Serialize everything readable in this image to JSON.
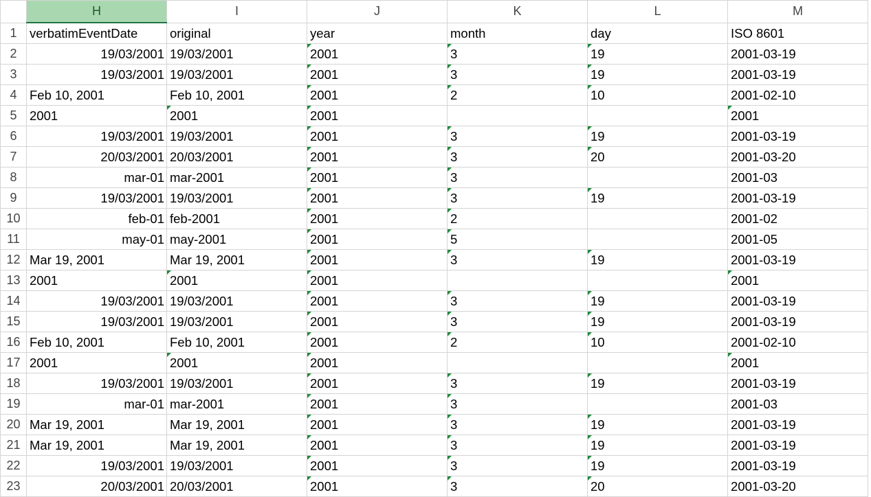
{
  "columns": [
    "H",
    "I",
    "J",
    "K",
    "L",
    "M"
  ],
  "selected_column": "H",
  "rows": [
    {
      "n": "1",
      "cells": [
        {
          "v": "verbatimEventDate",
          "a": "l"
        },
        {
          "v": "original",
          "a": "l"
        },
        {
          "v": "year",
          "a": "l"
        },
        {
          "v": "month",
          "a": "l"
        },
        {
          "v": "day",
          "a": "l"
        },
        {
          "v": "ISO 8601",
          "a": "l"
        }
      ]
    },
    {
      "n": "2",
      "cells": [
        {
          "v": "19/03/2001",
          "a": "r"
        },
        {
          "v": "19/03/2001",
          "a": "l"
        },
        {
          "v": "2001",
          "a": "l",
          "m": true
        },
        {
          "v": "3",
          "a": "l",
          "m": true
        },
        {
          "v": "19",
          "a": "l",
          "m": true
        },
        {
          "v": "2001-03-19",
          "a": "l"
        }
      ]
    },
    {
      "n": "3",
      "cells": [
        {
          "v": "19/03/2001",
          "a": "r"
        },
        {
          "v": "19/03/2001",
          "a": "l"
        },
        {
          "v": "2001",
          "a": "l",
          "m": true
        },
        {
          "v": "3",
          "a": "l",
          "m": true
        },
        {
          "v": "19",
          "a": "l",
          "m": true
        },
        {
          "v": "2001-03-19",
          "a": "l"
        }
      ]
    },
    {
      "n": "4",
      "cells": [
        {
          "v": "Feb 10, 2001",
          "a": "l"
        },
        {
          "v": "Feb 10, 2001",
          "a": "l"
        },
        {
          "v": "2001",
          "a": "l",
          "m": true
        },
        {
          "v": "2",
          "a": "l",
          "m": true
        },
        {
          "v": "10",
          "a": "l",
          "m": true
        },
        {
          "v": "2001-02-10",
          "a": "l"
        }
      ]
    },
    {
      "n": "5",
      "cells": [
        {
          "v": "2001",
          "a": "l"
        },
        {
          "v": "2001",
          "a": "l",
          "m": true
        },
        {
          "v": "2001",
          "a": "l",
          "m": true
        },
        {
          "v": "",
          "a": "l"
        },
        {
          "v": "",
          "a": "l"
        },
        {
          "v": "2001",
          "a": "l",
          "m": true
        }
      ]
    },
    {
      "n": "6",
      "cells": [
        {
          "v": "19/03/2001",
          "a": "r"
        },
        {
          "v": "19/03/2001",
          "a": "l"
        },
        {
          "v": "2001",
          "a": "l",
          "m": true
        },
        {
          "v": "3",
          "a": "l",
          "m": true
        },
        {
          "v": "19",
          "a": "l",
          "m": true
        },
        {
          "v": "2001-03-19",
          "a": "l"
        }
      ]
    },
    {
      "n": "7",
      "cells": [
        {
          "v": "20/03/2001",
          "a": "r"
        },
        {
          "v": "20/03/2001",
          "a": "l"
        },
        {
          "v": "2001",
          "a": "l",
          "m": true
        },
        {
          "v": "3",
          "a": "l",
          "m": true
        },
        {
          "v": "20",
          "a": "l",
          "m": true
        },
        {
          "v": "2001-03-20",
          "a": "l"
        }
      ]
    },
    {
      "n": "8",
      "cells": [
        {
          "v": "mar-01",
          "a": "r"
        },
        {
          "v": "mar-2001",
          "a": "l"
        },
        {
          "v": "2001",
          "a": "l",
          "m": true
        },
        {
          "v": "3",
          "a": "l",
          "m": true
        },
        {
          "v": "",
          "a": "l"
        },
        {
          "v": "2001-03",
          "a": "l"
        }
      ]
    },
    {
      "n": "9",
      "cells": [
        {
          "v": "19/03/2001",
          "a": "r"
        },
        {
          "v": "19/03/2001",
          "a": "l"
        },
        {
          "v": "2001",
          "a": "l",
          "m": true
        },
        {
          "v": "3",
          "a": "l",
          "m": true
        },
        {
          "v": "19",
          "a": "l",
          "m": true
        },
        {
          "v": "2001-03-19",
          "a": "l"
        }
      ]
    },
    {
      "n": "10",
      "cells": [
        {
          "v": "feb-01",
          "a": "r"
        },
        {
          "v": "feb-2001",
          "a": "l"
        },
        {
          "v": "2001",
          "a": "l",
          "m": true
        },
        {
          "v": "2",
          "a": "l",
          "m": true
        },
        {
          "v": "",
          "a": "l"
        },
        {
          "v": "2001-02",
          "a": "l"
        }
      ]
    },
    {
      "n": "11",
      "cells": [
        {
          "v": "may-01",
          "a": "r"
        },
        {
          "v": "may-2001",
          "a": "l"
        },
        {
          "v": "2001",
          "a": "l",
          "m": true
        },
        {
          "v": "5",
          "a": "l",
          "m": true
        },
        {
          "v": "",
          "a": "l"
        },
        {
          "v": "2001-05",
          "a": "l"
        }
      ]
    },
    {
      "n": "12",
      "cells": [
        {
          "v": "Mar 19, 2001",
          "a": "l"
        },
        {
          "v": "Mar 19, 2001",
          "a": "l"
        },
        {
          "v": "2001",
          "a": "l",
          "m": true
        },
        {
          "v": "3",
          "a": "l",
          "m": true
        },
        {
          "v": "19",
          "a": "l",
          "m": true
        },
        {
          "v": "2001-03-19",
          "a": "l"
        }
      ]
    },
    {
      "n": "13",
      "cells": [
        {
          "v": "2001",
          "a": "l"
        },
        {
          "v": "2001",
          "a": "l",
          "m": true
        },
        {
          "v": "2001",
          "a": "l",
          "m": true
        },
        {
          "v": "",
          "a": "l"
        },
        {
          "v": "",
          "a": "l"
        },
        {
          "v": "2001",
          "a": "l",
          "m": true
        }
      ]
    },
    {
      "n": "14",
      "cells": [
        {
          "v": "19/03/2001",
          "a": "r"
        },
        {
          "v": "19/03/2001",
          "a": "l"
        },
        {
          "v": "2001",
          "a": "l",
          "m": true
        },
        {
          "v": "3",
          "a": "l",
          "m": true
        },
        {
          "v": "19",
          "a": "l",
          "m": true
        },
        {
          "v": "2001-03-19",
          "a": "l"
        }
      ]
    },
    {
      "n": "15",
      "cells": [
        {
          "v": "19/03/2001",
          "a": "r"
        },
        {
          "v": "19/03/2001",
          "a": "l"
        },
        {
          "v": "2001",
          "a": "l",
          "m": true
        },
        {
          "v": "3",
          "a": "l",
          "m": true
        },
        {
          "v": "19",
          "a": "l",
          "m": true
        },
        {
          "v": "2001-03-19",
          "a": "l"
        }
      ]
    },
    {
      "n": "16",
      "cells": [
        {
          "v": "Feb 10, 2001",
          "a": "l"
        },
        {
          "v": "Feb 10, 2001",
          "a": "l"
        },
        {
          "v": "2001",
          "a": "l",
          "m": true
        },
        {
          "v": "2",
          "a": "l",
          "m": true
        },
        {
          "v": "10",
          "a": "l",
          "m": true
        },
        {
          "v": "2001-02-10",
          "a": "l"
        }
      ]
    },
    {
      "n": "17",
      "cells": [
        {
          "v": "2001",
          "a": "l"
        },
        {
          "v": "2001",
          "a": "l",
          "m": true
        },
        {
          "v": "2001",
          "a": "l",
          "m": true
        },
        {
          "v": "",
          "a": "l"
        },
        {
          "v": "",
          "a": "l"
        },
        {
          "v": "2001",
          "a": "l",
          "m": true
        }
      ]
    },
    {
      "n": "18",
      "cells": [
        {
          "v": "19/03/2001",
          "a": "r"
        },
        {
          "v": "19/03/2001",
          "a": "l"
        },
        {
          "v": "2001",
          "a": "l",
          "m": true
        },
        {
          "v": "3",
          "a": "l",
          "m": true
        },
        {
          "v": "19",
          "a": "l",
          "m": true
        },
        {
          "v": "2001-03-19",
          "a": "l"
        }
      ]
    },
    {
      "n": "19",
      "cells": [
        {
          "v": "mar-01",
          "a": "r"
        },
        {
          "v": "mar-2001",
          "a": "l"
        },
        {
          "v": "2001",
          "a": "l",
          "m": true
        },
        {
          "v": "3",
          "a": "l",
          "m": true
        },
        {
          "v": "",
          "a": "l"
        },
        {
          "v": "2001-03",
          "a": "l"
        }
      ]
    },
    {
      "n": "20",
      "cells": [
        {
          "v": "Mar 19, 2001",
          "a": "l"
        },
        {
          "v": "Mar 19, 2001",
          "a": "l"
        },
        {
          "v": "2001",
          "a": "l",
          "m": true
        },
        {
          "v": "3",
          "a": "l",
          "m": true
        },
        {
          "v": "19",
          "a": "l",
          "m": true
        },
        {
          "v": "2001-03-19",
          "a": "l"
        }
      ]
    },
    {
      "n": "21",
      "cells": [
        {
          "v": "Mar 19, 2001",
          "a": "l"
        },
        {
          "v": "Mar 19, 2001",
          "a": "l"
        },
        {
          "v": "2001",
          "a": "l",
          "m": true
        },
        {
          "v": "3",
          "a": "l",
          "m": true
        },
        {
          "v": "19",
          "a": "l",
          "m": true
        },
        {
          "v": "2001-03-19",
          "a": "l"
        }
      ]
    },
    {
      "n": "22",
      "cells": [
        {
          "v": "19/03/2001",
          "a": "r"
        },
        {
          "v": "19/03/2001",
          "a": "l"
        },
        {
          "v": "2001",
          "a": "l",
          "m": true
        },
        {
          "v": "3",
          "a": "l",
          "m": true
        },
        {
          "v": "19",
          "a": "l",
          "m": true
        },
        {
          "v": "2001-03-19",
          "a": "l"
        }
      ]
    },
    {
      "n": "23",
      "cells": [
        {
          "v": "20/03/2001",
          "a": "r"
        },
        {
          "v": "20/03/2001",
          "a": "l"
        },
        {
          "v": "2001",
          "a": "l",
          "m": true
        },
        {
          "v": "3",
          "a": "l",
          "m": true
        },
        {
          "v": "20",
          "a": "l",
          "m": true
        },
        {
          "v": "2001-03-20",
          "a": "l"
        }
      ]
    }
  ],
  "colors": {
    "selected_header_bg": "#a9d8b0",
    "selected_header_underline": "#217346",
    "gridline": "#d4d4d4",
    "text_marker": "#1f8a3a"
  }
}
